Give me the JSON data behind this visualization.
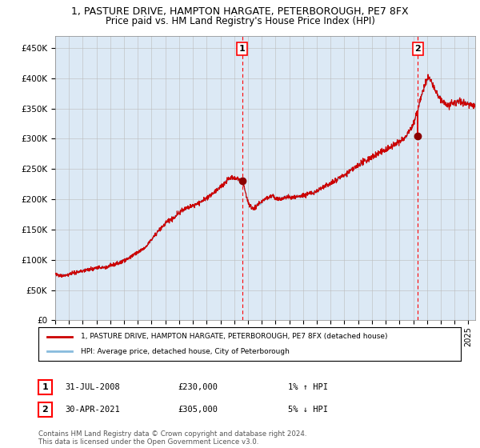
{
  "title": "1, PASTURE DRIVE, HAMPTON HARGATE, PETERBOROUGH, PE7 8FX",
  "subtitle": "Price paid vs. HM Land Registry's House Price Index (HPI)",
  "hpi_label": "HPI: Average price, detached house, City of Peterborough",
  "property_label": "1, PASTURE DRIVE, HAMPTON HARGATE, PETERBOROUGH, PE7 8FX (detached house)",
  "footer": "Contains HM Land Registry data © Crown copyright and database right 2024.\nThis data is licensed under the Open Government Licence v3.0.",
  "annotation1": {
    "label": "1",
    "date_x": 2008.58,
    "price": 230000,
    "date_str": "31-JUL-2008",
    "price_str": "£230,000",
    "hpi_str": "1% ↑ HPI"
  },
  "annotation2": {
    "label": "2",
    "date_x": 2021.33,
    "price": 305000,
    "date_str": "30-APR-2021",
    "price_str": "£305,000",
    "hpi_str": "5% ↓ HPI"
  },
  "ylim": [
    0,
    470000
  ],
  "xlim_start": 1995.0,
  "xlim_end": 2025.5,
  "background_color": "#dce9f5",
  "hpi_color": "#88bbdd",
  "property_color": "#cc0000",
  "dot_color": "#8b0000",
  "grid_color": "#bbbbbb",
  "title_fontsize": 9,
  "subtitle_fontsize": 8.5
}
